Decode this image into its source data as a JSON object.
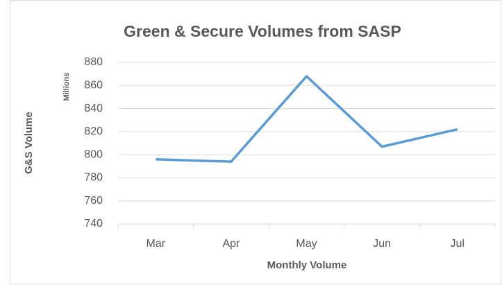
{
  "chart_data": {
    "type": "line",
    "title": "Green & Secure Volumes from SASP",
    "y_axis_label": "G&S Volume",
    "y_unit_label": "Millions",
    "x_axis_label": "Monthly Volume",
    "categories": [
      "Mar",
      "Apr",
      "May",
      "Jun",
      "Jul"
    ],
    "series": [
      {
        "name": "G&S Volume",
        "color": "#5b9bd5",
        "values": [
          796,
          794,
          868,
          807,
          822
        ]
      }
    ],
    "ylim": [
      740,
      880
    ],
    "yticks": [
      740,
      760,
      780,
      800,
      820,
      840,
      860,
      880
    ],
    "grid": true
  }
}
